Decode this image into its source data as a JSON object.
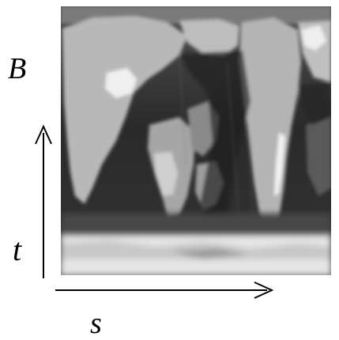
{
  "labels": {
    "b": "B",
    "t": "t",
    "s": "s"
  },
  "map": {
    "description_icon": "world-map-texture"
  },
  "colors": {
    "axis": "#000000",
    "land_light": "#c2c2c2",
    "ocean_dark": "#2e2e2e"
  }
}
